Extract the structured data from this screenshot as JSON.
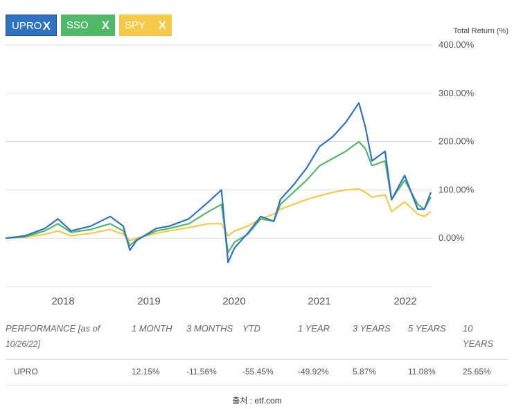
{
  "legend_tags": [
    {
      "label": "UPRO",
      "close": "X",
      "color": "#2e72c4"
    },
    {
      "label": "SSO",
      "close": "X",
      "color": "#52b86a"
    },
    {
      "label": "SPY",
      "close": "X",
      "color": "#f7c948"
    }
  ],
  "chart_data": {
    "type": "line",
    "ylabel": "Total Return (%)",
    "ylim": [
      -100,
      400
    ],
    "yticks": [
      "400.00%",
      "300.00%",
      "200.00%",
      "100.00%",
      "0.00%"
    ],
    "xticks": [
      "2018",
      "2019",
      "2020",
      "2021",
      "2022"
    ],
    "grid": true,
    "x": [
      "2017-05",
      "2017-08",
      "2017-11",
      "2018-01",
      "2018-03",
      "2018-06",
      "2018-09",
      "2018-11",
      "2018-12",
      "2019-01",
      "2019-04",
      "2019-06",
      "2019-09",
      "2019-12",
      "2020-02",
      "2020-03",
      "2020-04",
      "2020-06",
      "2020-08",
      "2020-10",
      "2020-11",
      "2021-01",
      "2021-03",
      "2021-05",
      "2021-07",
      "2021-09",
      "2021-11",
      "2021-12",
      "2022-01",
      "2022-03",
      "2022-04",
      "2022-06",
      "2022-08",
      "2022-09",
      "2022-10"
    ],
    "series": [
      {
        "name": "UPRO",
        "color": "#2e72c4",
        "values": [
          0,
          5,
          20,
          40,
          15,
          25,
          45,
          25,
          -25,
          -5,
          20,
          25,
          40,
          75,
          100,
          -50,
          -20,
          10,
          45,
          35,
          80,
          110,
          145,
          190,
          210,
          240,
          280,
          230,
          160,
          180,
          80,
          130,
          60,
          60,
          95
        ]
      },
      {
        "name": "SSO",
        "color": "#52b86a",
        "values": [
          0,
          3,
          15,
          30,
          12,
          18,
          30,
          15,
          -15,
          -3,
          15,
          20,
          30,
          55,
          70,
          -30,
          -8,
          8,
          40,
          35,
          70,
          95,
          120,
          150,
          165,
          180,
          200,
          185,
          150,
          160,
          80,
          120,
          70,
          60,
          85
        ]
      },
      {
        "name": "SPY",
        "color": "#f7c948",
        "values": [
          0,
          2,
          8,
          15,
          5,
          10,
          18,
          8,
          -5,
          0,
          10,
          15,
          22,
          30,
          30,
          5,
          15,
          25,
          40,
          50,
          60,
          70,
          80,
          88,
          95,
          100,
          102,
          95,
          85,
          90,
          55,
          75,
          50,
          45,
          55
        ]
      }
    ]
  },
  "performance": {
    "header_label_line1": "PERFORMANCE [as of",
    "header_label_line2": "10/26/22]",
    "columns": [
      "1 MONTH",
      "3 MONTHS",
      "YTD",
      "1 YEAR",
      "3 YEARS",
      "5 YEARS",
      "10",
      "YEARS"
    ],
    "rows": [
      {
        "ticker": "UPRO",
        "values": [
          "12.15%",
          "-11.56%",
          "-55.45%",
          "-49.92%",
          "5.87%",
          "11.08%",
          "25.65%"
        ]
      }
    ]
  },
  "source": "출처 : etf.com"
}
